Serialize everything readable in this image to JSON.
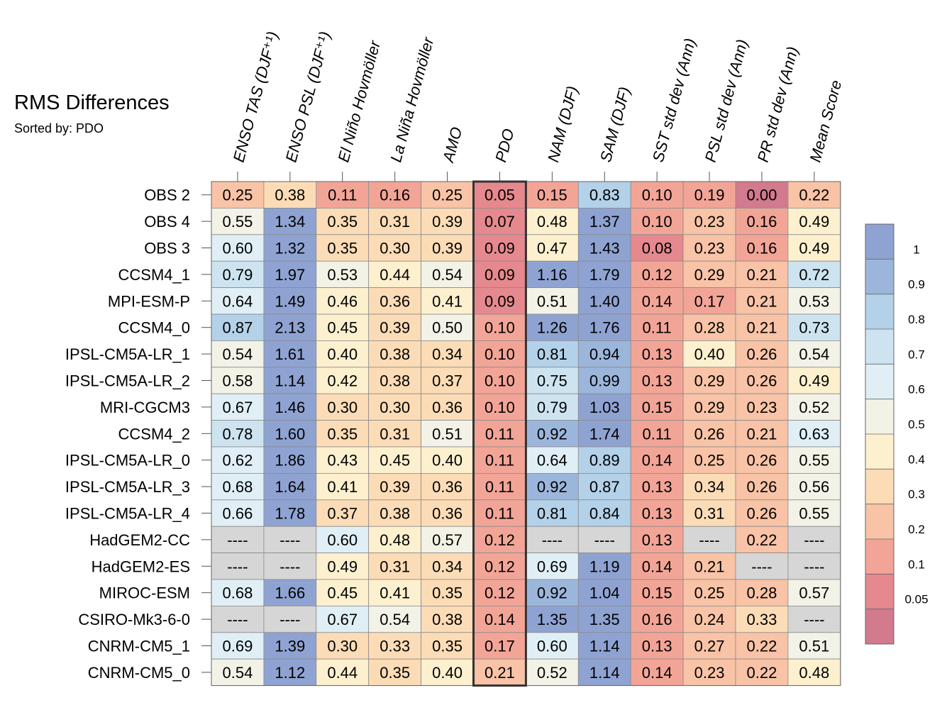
{
  "chart_data": {
    "type": "heatmap",
    "title": "RMS Differences",
    "subtitle": "Sorted by: PDO",
    "highlight_column": "PDO",
    "columns": [
      "ENSO TAS (DJF⁺¹)",
      "ENSO PSL (DJF⁺¹)",
      "El Niño Hovmöller",
      "La Niña Hovmöller",
      "AMO",
      "PDO",
      "NAM (DJF)",
      "SAM (DJF)",
      "SST std dev (Ann)",
      "PSL std dev (Ann)",
      "PR std dev (Ann)",
      "Mean Score"
    ],
    "rows": [
      "OBS 2",
      "OBS 4",
      "OBS 3",
      "CCSM4_1",
      "MPI-ESM-P",
      "CCSM4_0",
      "IPSL-CM5A-LR_1",
      "IPSL-CM5A-LR_2",
      "MRI-CGCM3",
      "CCSM4_2",
      "IPSL-CM5A-LR_0",
      "IPSL-CM5A-LR_3",
      "IPSL-CM5A-LR_4",
      "HadGEM2-CC",
      "HadGEM2-ES",
      "MIROC-ESM",
      "CSIRO-Mk3-6-0",
      "CNRM-CM5_1",
      "CNRM-CM5_0"
    ],
    "missing_label": "----",
    "values": [
      [
        "0.25",
        "0.38",
        "0.11",
        "0.16",
        "0.25",
        "0.05",
        "0.15",
        "0.83",
        "0.10",
        "0.19",
        "0.00",
        "0.22"
      ],
      [
        "0.55",
        "1.34",
        "0.35",
        "0.31",
        "0.39",
        "0.07",
        "0.48",
        "1.37",
        "0.10",
        "0.23",
        "0.16",
        "0.49"
      ],
      [
        "0.60",
        "1.32",
        "0.35",
        "0.30",
        "0.39",
        "0.09",
        "0.47",
        "1.43",
        "0.08",
        "0.23",
        "0.16",
        "0.49"
      ],
      [
        "0.79",
        "1.97",
        "0.53",
        "0.44",
        "0.54",
        "0.09",
        "1.16",
        "1.79",
        "0.12",
        "0.29",
        "0.21",
        "0.72"
      ],
      [
        "0.64",
        "1.49",
        "0.46",
        "0.36",
        "0.41",
        "0.09",
        "0.51",
        "1.40",
        "0.14",
        "0.17",
        "0.21",
        "0.53"
      ],
      [
        "0.87",
        "2.13",
        "0.45",
        "0.39",
        "0.50",
        "0.10",
        "1.26",
        "1.76",
        "0.11",
        "0.28",
        "0.21",
        "0.73"
      ],
      [
        "0.54",
        "1.61",
        "0.40",
        "0.38",
        "0.34",
        "0.10",
        "0.81",
        "0.94",
        "0.13",
        "0.40",
        "0.26",
        "0.54"
      ],
      [
        "0.58",
        "1.14",
        "0.42",
        "0.38",
        "0.37",
        "0.10",
        "0.75",
        "0.99",
        "0.13",
        "0.29",
        "0.26",
        "0.49"
      ],
      [
        "0.67",
        "1.46",
        "0.30",
        "0.30",
        "0.36",
        "0.10",
        "0.79",
        "1.03",
        "0.15",
        "0.29",
        "0.23",
        "0.52"
      ],
      [
        "0.78",
        "1.60",
        "0.35",
        "0.31",
        "0.51",
        "0.11",
        "0.92",
        "1.74",
        "0.11",
        "0.26",
        "0.21",
        "0.63"
      ],
      [
        "0.62",
        "1.86",
        "0.43",
        "0.45",
        "0.40",
        "0.11",
        "0.64",
        "0.89",
        "0.14",
        "0.25",
        "0.26",
        "0.55"
      ],
      [
        "0.68",
        "1.64",
        "0.41",
        "0.39",
        "0.36",
        "0.11",
        "0.92",
        "0.87",
        "0.13",
        "0.34",
        "0.26",
        "0.56"
      ],
      [
        "0.66",
        "1.78",
        "0.37",
        "0.38",
        "0.36",
        "0.11",
        "0.81",
        "0.84",
        "0.13",
        "0.31",
        "0.26",
        "0.55"
      ],
      [
        "----",
        "----",
        "0.60",
        "0.48",
        "0.57",
        "0.12",
        "----",
        "----",
        "0.13",
        "----",
        "0.22",
        "----"
      ],
      [
        "----",
        "----",
        "0.49",
        "0.31",
        "0.34",
        "0.12",
        "0.69",
        "1.19",
        "0.14",
        "0.21",
        "----",
        "----"
      ],
      [
        "0.68",
        "1.66",
        "0.45",
        "0.41",
        "0.35",
        "0.12",
        "0.92",
        "1.04",
        "0.15",
        "0.25",
        "0.28",
        "0.57"
      ],
      [
        "----",
        "----",
        "0.67",
        "0.54",
        "0.38",
        "0.14",
        "1.35",
        "1.35",
        "0.16",
        "0.24",
        "0.33",
        "----"
      ],
      [
        "0.69",
        "1.39",
        "0.30",
        "0.33",
        "0.35",
        "0.17",
        "0.60",
        "1.14",
        "0.13",
        "0.27",
        "0.22",
        "0.51"
      ],
      [
        "0.54",
        "1.12",
        "0.44",
        "0.35",
        "0.40",
        "0.21",
        "0.52",
        "1.14",
        "0.14",
        "0.23",
        "0.22",
        "0.48"
      ]
    ],
    "colorbar": {
      "labels": [
        "1",
        "0.9",
        "0.8",
        "0.7",
        "0.6",
        "0.5",
        "0.4",
        "0.3",
        "0.2",
        "0.1",
        "0.05"
      ],
      "bounds": [
        0.05,
        0.1,
        0.2,
        0.3,
        0.4,
        0.5,
        0.6,
        0.7,
        0.8,
        0.9,
        1.0
      ],
      "colors": [
        "#d27a8e",
        "#e5898e",
        "#f2a597",
        "#f8c3a6",
        "#fcdcb6",
        "#fdf0cf",
        "#f2f2e7",
        "#e0eff5",
        "#cde4f0",
        "#b3d1e8",
        "#9cb6db",
        "#8fa3d2"
      ],
      "missing_color": "#d6d6d6"
    }
  }
}
